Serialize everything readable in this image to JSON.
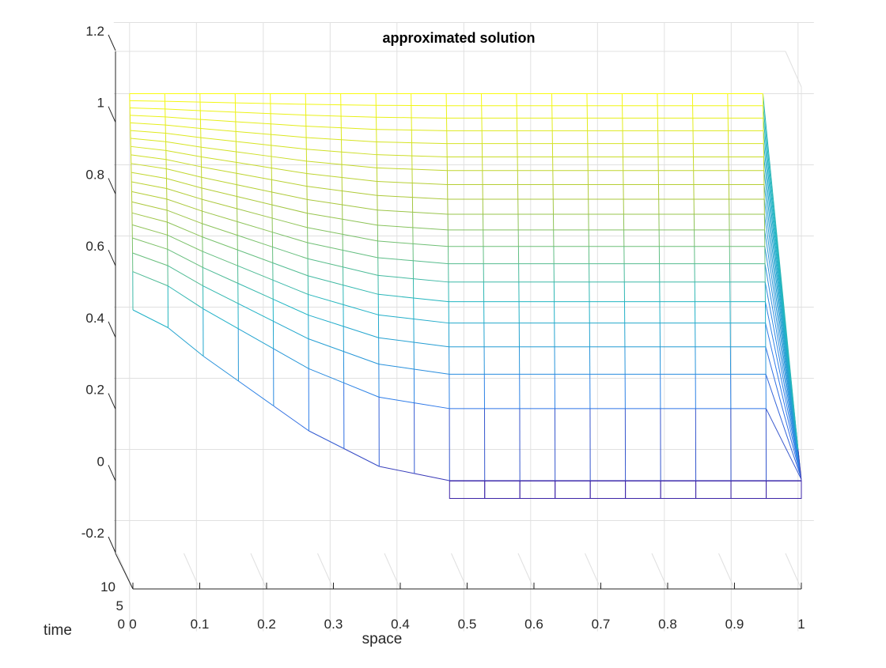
{
  "chart_data": {
    "type": "surface-mesh",
    "title": "approximated solution",
    "xlabel": "space",
    "ylabel": "time",
    "zlabel": "",
    "x_ticks": [
      "0",
      "0.1",
      "0.2",
      "0.3",
      "0.4",
      "0.5",
      "0.6",
      "0.7",
      "0.8",
      "0.9",
      "1"
    ],
    "y_ticks": [
      "0",
      "5",
      "10"
    ],
    "z_ticks": [
      "-0.2",
      "0",
      "0.2",
      "0.4",
      "0.6",
      "0.8",
      "1",
      "1.2"
    ],
    "xlim": [
      0,
      1
    ],
    "ylim": [
      0,
      10
    ],
    "zlim": [
      -0.2,
      1.2
    ],
    "grid": true,
    "colormap": "parula",
    "colors": {
      "low": "#3e26a8",
      "mid": "#1fb5c4",
      "high": "#f9fb0e",
      "grid": "#e0e0e0",
      "axis": "#262626"
    },
    "time_levels": 20,
    "initial_profile": {
      "x": [
        0,
        0.0526,
        0.1053,
        0.1579,
        0.2105,
        0.2632,
        0.3158,
        0.3684,
        0.4211,
        0.4737,
        0.5263,
        0.5789,
        0.6316,
        0.6842,
        0.7368,
        0.7895,
        0.8421,
        0.8947,
        0.9474,
        1.0
      ],
      "u": [
        1.0,
        1.0,
        1.0,
        1.0,
        1.0,
        1.0,
        1.0,
        1.0,
        1.0,
        1.0,
        1.0,
        1.0,
        1.0,
        1.0,
        1.0,
        1.0,
        1.0,
        1.0,
        1.0,
        0
      ]
    },
    "final_profile": {
      "x": [
        0,
        0.0526,
        0.1053,
        0.1579,
        0.2105,
        0.2632,
        0.3158,
        0.3684,
        0.4211,
        0.4737,
        0.5263,
        0.5789,
        0.6316,
        0.6842,
        0.7368,
        0.7895,
        0.8421,
        0.8947,
        0.9474,
        1.0
      ],
      "u": [
        0.48,
        0.43,
        0.35,
        0.28,
        0.21,
        0.14,
        0.09,
        0.04,
        0.02,
        0,
        0,
        0,
        0,
        0,
        0,
        0,
        0,
        0,
        0,
        0
      ]
    }
  }
}
